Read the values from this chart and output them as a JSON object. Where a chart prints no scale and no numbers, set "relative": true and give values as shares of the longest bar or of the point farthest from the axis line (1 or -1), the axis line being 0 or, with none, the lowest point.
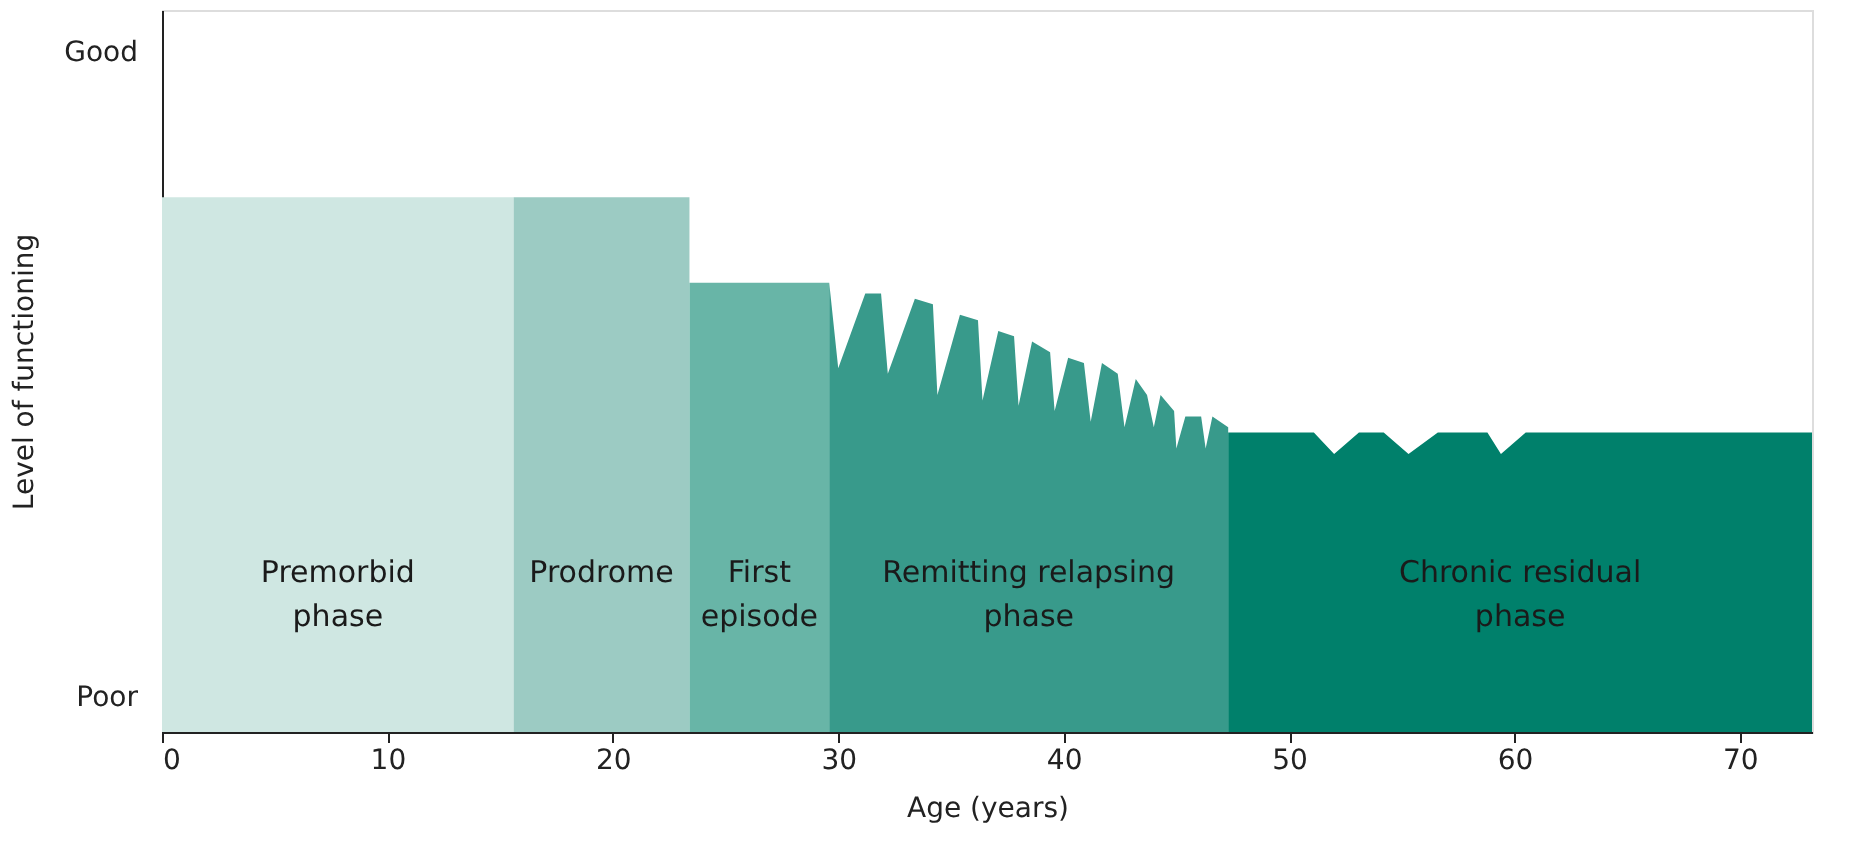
{
  "chart_data": {
    "type": "area",
    "relative": true,
    "xlabel": "Age (years)",
    "ylabel": "Level of functioning",
    "xlim": [
      0,
      73.2
    ],
    "xticks": [
      0,
      10,
      20,
      30,
      40,
      50,
      60,
      70
    ],
    "annotations": [
      "Good",
      "Poor"
    ],
    "grid": false,
    "legend": false,
    "series": [
      {
        "name": "Premorbid phase",
        "color": "#cfe7e2",
        "x": [
          0,
          15.6
        ],
        "values": [
          1,
          1
        ]
      },
      {
        "name": "Prodrome",
        "color": "#9ccbc3",
        "x": [
          15.6,
          23.4
        ],
        "values": [
          1,
          1
        ]
      },
      {
        "name": "First episode",
        "color": "#68b5a7",
        "x": [
          23.4,
          29.6
        ],
        "values": [
          0.84,
          0.84
        ]
      },
      {
        "name": "Remitting relapsing phase",
        "color": "#389a8b",
        "x": [
          29.6,
          30.0,
          31.2,
          31.9,
          32.2,
          33.4,
          34.2,
          34.4,
          35.4,
          36.2,
          36.4,
          37.1,
          37.8,
          38.0,
          38.6,
          39.4,
          39.6,
          40.2,
          40.9,
          41.2,
          41.7,
          42.4,
          42.7,
          43.2,
          43.7,
          44.0,
          44.3,
          44.9,
          45.0,
          45.4,
          46.1,
          46.3,
          46.6,
          47.3
        ],
        "values": [
          0.84,
          0.68,
          0.82,
          0.82,
          0.67,
          0.81,
          0.8,
          0.63,
          0.78,
          0.77,
          0.62,
          0.75,
          0.74,
          0.61,
          0.73,
          0.71,
          0.6,
          0.7,
          0.69,
          0.58,
          0.69,
          0.67,
          0.57,
          0.66,
          0.63,
          0.57,
          0.63,
          0.6,
          0.53,
          0.59,
          0.59,
          0.53,
          0.59,
          0.57
        ]
      },
      {
        "name": "Chronic residual phase",
        "color": "#00806b",
        "x": [
          47.3,
          51.1,
          52.0,
          53.1,
          54.2,
          55.3,
          56.6,
          58.8,
          59.4,
          60.5,
          73.2
        ],
        "values": [
          0.56,
          0.56,
          0.52,
          0.56,
          0.56,
          0.52,
          0.56,
          0.56,
          0.52,
          0.56,
          0.56
        ]
      }
    ]
  }
}
